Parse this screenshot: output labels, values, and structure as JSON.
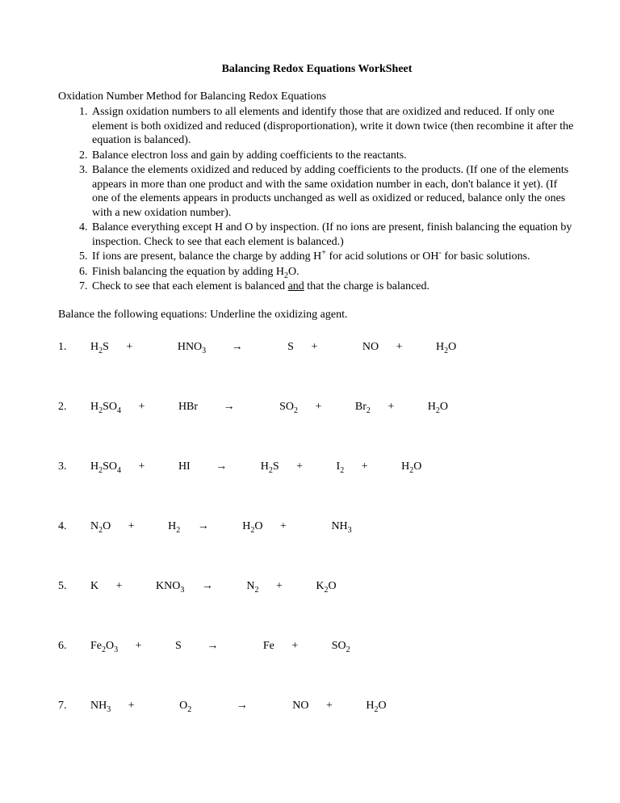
{
  "title": "Balancing Redox Equations WorkSheet",
  "intro_heading": "Oxidation Number Method for Balancing Redox Equations",
  "method": {
    "item1": "Assign oxidation numbers to all elements and identify those that are oxidized and reduced.  If only one element is both oxidized and reduced (disproportionation), write it down twice (then recombine it after the equation is balanced).",
    "item2": "Balance electron loss and gain by adding coefficients to the reactants.",
    "item3": "Balance the elements oxidized and reduced by adding coefficients to the products.  (If one of the elements appears in more than one product and with the same oxidation number in each, don't balance it yet).  (If one of the elements appears in products unchanged as well as oxidized or reduced, balance only the ones with a new oxidation number).",
    "item4": "Balance everything except H and O by inspection.  (If no ions are present, finish balancing the equation by inspection.  Check to see that each element is balanced.)",
    "item5a": "If ions are present, balance the charge by adding H",
    "item5b": " for acid solutions or OH",
    "item5c": " for basic solutions.",
    "item6a": "Finish balancing the equation by adding H",
    "item6b": "O.",
    "item7a": "Check to see that each element is balanced ",
    "item7_and": "and",
    "item7b": " that the charge is balanced."
  },
  "instruction": "Balance the following equations:  Underline the oxidizing agent.",
  "eq": {
    "n1": "1.",
    "n2": "2.",
    "n3": "3.",
    "n4": "4.",
    "n5": "5.",
    "n6": "6.",
    "n7": "7.",
    "plus": "+",
    "arrow": "→",
    "H": "H",
    "S": "S",
    "N": "N",
    "O": "O",
    "Br": "Br",
    "I": "I",
    "K": "K",
    "Fe": "Fe",
    "NO": "NO",
    "SO": "SO",
    "NH": "NH",
    "HNO": "HNO",
    "HBr": "HBr",
    "HI": "HI",
    "KNO": "KNO",
    "s2": "2",
    "s3": "3",
    "s4": "4",
    "splus": "+",
    "sminus": "-"
  }
}
